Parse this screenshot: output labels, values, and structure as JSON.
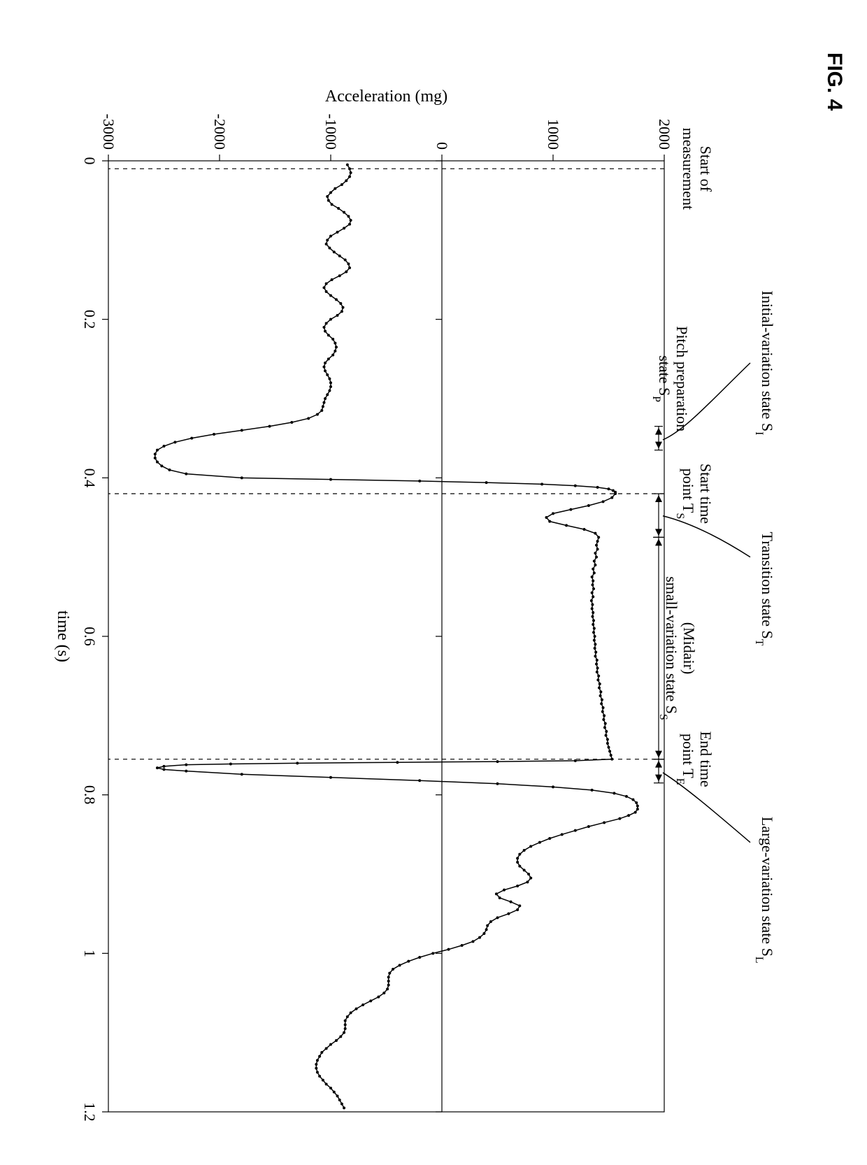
{
  "figure_label": "FIG. 4",
  "chart": {
    "type": "line",
    "background_color": "#ffffff",
    "axis_color": "#000000",
    "grid_color": "#000000",
    "line_color": "#000000",
    "marker_color": "#000000",
    "line_width": 1.5,
    "marker_radius": 2.0,
    "xlim": [
      0,
      1.2
    ],
    "ylim": [
      -3000,
      2000
    ],
    "axis_linewidth": 1.2,
    "zero_line": true,
    "x": {
      "label": "time  (s)",
      "label_fontsize": 24,
      "ticks": [
        0,
        0.2,
        0.4,
        0.6,
        0.8,
        1,
        1.2
      ],
      "tick_labels": [
        "0",
        "0.2",
        "0.4",
        "0.6",
        "0.8",
        "1",
        "1.2"
      ],
      "tick_fontsize": 22
    },
    "y": {
      "label": "Acceleration  (mg)",
      "label_fontsize": 24,
      "ticks": [
        -3000,
        -2000,
        -1000,
        0,
        1000,
        2000
      ],
      "tick_labels": [
        "-3000",
        "-2000",
        "-1000",
        "0",
        "1000",
        "2000"
      ],
      "tick_fontsize": 22
    },
    "markers": {
      "x_dashed": [
        0.01,
        0.42,
        0.755
      ],
      "dash_pattern": "6,6",
      "dash_color": "#000000",
      "dash_width": 1.2
    },
    "annotations": {
      "start_meas": "Start of\nmeasurement",
      "pitch_prep": "Pitch preparation\nstate S",
      "pitch_prep_sub": "P",
      "initial_var": "Initial-variation state S",
      "initial_var_sub": "I",
      "start_time": "Start time\npoint T",
      "start_time_sub": "S",
      "transition": "Transition state S",
      "transition_sub": "T",
      "midair": "(Midair)\nsmall-variation state S",
      "midair_sub": "S",
      "end_time": "End time\npoint T",
      "end_time_sub": "E",
      "large_var": "Large-variation state S",
      "large_var_sub": "L",
      "fontsize": 22
    },
    "data": [
      [
        0.005,
        -850
      ],
      [
        0.01,
        -830
      ],
      [
        0.015,
        -820
      ],
      [
        0.02,
        -830
      ],
      [
        0.025,
        -860
      ],
      [
        0.03,
        -900
      ],
      [
        0.035,
        -960
      ],
      [
        0.04,
        -1000
      ],
      [
        0.045,
        -1030
      ],
      [
        0.05,
        -1020
      ],
      [
        0.055,
        -990
      ],
      [
        0.06,
        -930
      ],
      [
        0.065,
        -880
      ],
      [
        0.07,
        -840
      ],
      [
        0.075,
        -820
      ],
      [
        0.08,
        -830
      ],
      [
        0.085,
        -880
      ],
      [
        0.09,
        -940
      ],
      [
        0.095,
        -1000
      ],
      [
        0.1,
        -1030
      ],
      [
        0.105,
        -1040
      ],
      [
        0.11,
        -1010
      ],
      [
        0.115,
        -970
      ],
      [
        0.12,
        -920
      ],
      [
        0.125,
        -870
      ],
      [
        0.13,
        -840
      ],
      [
        0.135,
        -830
      ],
      [
        0.14,
        -860
      ],
      [
        0.145,
        -920
      ],
      [
        0.15,
        -990
      ],
      [
        0.155,
        -1040
      ],
      [
        0.16,
        -1060
      ],
      [
        0.165,
        -1040
      ],
      [
        0.17,
        -1000
      ],
      [
        0.175,
        -950
      ],
      [
        0.18,
        -910
      ],
      [
        0.185,
        -890
      ],
      [
        0.19,
        -900
      ],
      [
        0.195,
        -940
      ],
      [
        0.2,
        -1000
      ],
      [
        0.205,
        -1040
      ],
      [
        0.21,
        -1060
      ],
      [
        0.215,
        -1050
      ],
      [
        0.22,
        -1020
      ],
      [
        0.225,
        -980
      ],
      [
        0.23,
        -960
      ],
      [
        0.235,
        -950
      ],
      [
        0.24,
        -960
      ],
      [
        0.245,
        -980
      ],
      [
        0.25,
        -1020
      ],
      [
        0.255,
        -1050
      ],
      [
        0.26,
        -1060
      ],
      [
        0.265,
        -1050
      ],
      [
        0.27,
        -1030
      ],
      [
        0.275,
        -1010
      ],
      [
        0.28,
        -1000
      ],
      [
        0.285,
        -1000
      ],
      [
        0.29,
        -1010
      ],
      [
        0.295,
        -1030
      ],
      [
        0.3,
        -1050
      ],
      [
        0.305,
        -1060
      ],
      [
        0.31,
        -1070
      ],
      [
        0.315,
        -1080
      ],
      [
        0.32,
        -1120
      ],
      [
        0.325,
        -1200
      ],
      [
        0.33,
        -1350
      ],
      [
        0.335,
        -1550
      ],
      [
        0.34,
        -1800
      ],
      [
        0.345,
        -2050
      ],
      [
        0.35,
        -2250
      ],
      [
        0.355,
        -2400
      ],
      [
        0.36,
        -2500
      ],
      [
        0.365,
        -2560
      ],
      [
        0.37,
        -2580
      ],
      [
        0.375,
        -2580
      ],
      [
        0.38,
        -2560
      ],
      [
        0.385,
        -2520
      ],
      [
        0.39,
        -2450
      ],
      [
        0.395,
        -2300
      ],
      [
        0.4,
        -1800
      ],
      [
        0.402,
        -1000
      ],
      [
        0.404,
        -200
      ],
      [
        0.406,
        400
      ],
      [
        0.408,
        900
      ],
      [
        0.41,
        1200
      ],
      [
        0.412,
        1400
      ],
      [
        0.414,
        1500
      ],
      [
        0.416,
        1540
      ],
      [
        0.418,
        1560
      ],
      [
        0.42,
        1560
      ],
      [
        0.425,
        1530
      ],
      [
        0.43,
        1450
      ],
      [
        0.435,
        1320
      ],
      [
        0.44,
        1160
      ],
      [
        0.445,
        1000
      ],
      [
        0.45,
        940
      ],
      [
        0.455,
        970
      ],
      [
        0.46,
        1120
      ],
      [
        0.465,
        1280
      ],
      [
        0.47,
        1380
      ],
      [
        0.475,
        1410
      ],
      [
        0.48,
        1400
      ],
      [
        0.485,
        1390
      ],
      [
        0.49,
        1400
      ],
      [
        0.495,
        1380
      ],
      [
        0.5,
        1390
      ],
      [
        0.505,
        1370
      ],
      [
        0.51,
        1380
      ],
      [
        0.515,
        1360
      ],
      [
        0.52,
        1370
      ],
      [
        0.525,
        1350
      ],
      [
        0.53,
        1360
      ],
      [
        0.535,
        1355
      ],
      [
        0.54,
        1365
      ],
      [
        0.545,
        1350
      ],
      [
        0.55,
        1360
      ],
      [
        0.555,
        1345
      ],
      [
        0.56,
        1355
      ],
      [
        0.565,
        1350
      ],
      [
        0.57,
        1360
      ],
      [
        0.575,
        1355
      ],
      [
        0.58,
        1365
      ],
      [
        0.585,
        1360
      ],
      [
        0.59,
        1370
      ],
      [
        0.595,
        1365
      ],
      [
        0.6,
        1375
      ],
      [
        0.605,
        1370
      ],
      [
        0.61,
        1380
      ],
      [
        0.615,
        1375
      ],
      [
        0.62,
        1385
      ],
      [
        0.625,
        1380
      ],
      [
        0.63,
        1395
      ],
      [
        0.635,
        1390
      ],
      [
        0.64,
        1400
      ],
      [
        0.645,
        1395
      ],
      [
        0.65,
        1410
      ],
      [
        0.655,
        1405
      ],
      [
        0.66,
        1420
      ],
      [
        0.665,
        1415
      ],
      [
        0.67,
        1430
      ],
      [
        0.675,
        1425
      ],
      [
        0.68,
        1440
      ],
      [
        0.685,
        1435
      ],
      [
        0.69,
        1450
      ],
      [
        0.695,
        1445
      ],
      [
        0.7,
        1460
      ],
      [
        0.705,
        1455
      ],
      [
        0.71,
        1470
      ],
      [
        0.715,
        1465
      ],
      [
        0.72,
        1480
      ],
      [
        0.725,
        1475
      ],
      [
        0.73,
        1490
      ],
      [
        0.735,
        1490
      ],
      [
        0.74,
        1500
      ],
      [
        0.745,
        1510
      ],
      [
        0.75,
        1520
      ],
      [
        0.755,
        1530
      ],
      [
        0.757,
        1200
      ],
      [
        0.758,
        500
      ],
      [
        0.759,
        -400
      ],
      [
        0.76,
        -1300
      ],
      [
        0.761,
        -1900
      ],
      [
        0.762,
        -2300
      ],
      [
        0.764,
        -2500
      ],
      [
        0.766,
        -2560
      ],
      [
        0.768,
        -2500
      ],
      [
        0.77,
        -2300
      ],
      [
        0.774,
        -1800
      ],
      [
        0.778,
        -1000
      ],
      [
        0.782,
        -200
      ],
      [
        0.786,
        500
      ],
      [
        0.79,
        1000
      ],
      [
        0.794,
        1350
      ],
      [
        0.798,
        1550
      ],
      [
        0.802,
        1660
      ],
      [
        0.806,
        1720
      ],
      [
        0.81,
        1750
      ],
      [
        0.814,
        1760
      ],
      [
        0.818,
        1760
      ],
      [
        0.822,
        1740
      ],
      [
        0.826,
        1680
      ],
      [
        0.83,
        1600
      ],
      [
        0.835,
        1460
      ],
      [
        0.84,
        1320
      ],
      [
        0.845,
        1200
      ],
      [
        0.85,
        1080
      ],
      [
        0.855,
        970
      ],
      [
        0.86,
        880
      ],
      [
        0.865,
        800
      ],
      [
        0.87,
        740
      ],
      [
        0.875,
        700
      ],
      [
        0.88,
        680
      ],
      [
        0.885,
        680
      ],
      [
        0.89,
        700
      ],
      [
        0.895,
        740
      ],
      [
        0.9,
        780
      ],
      [
        0.905,
        800
      ],
      [
        0.91,
        770
      ],
      [
        0.915,
        680
      ],
      [
        0.92,
        560
      ],
      [
        0.925,
        490
      ],
      [
        0.93,
        520
      ],
      [
        0.935,
        620
      ],
      [
        0.94,
        700
      ],
      [
        0.945,
        680
      ],
      [
        0.95,
        600
      ],
      [
        0.955,
        500
      ],
      [
        0.96,
        440
      ],
      [
        0.965,
        410
      ],
      [
        0.97,
        400
      ],
      [
        0.975,
        380
      ],
      [
        0.98,
        340
      ],
      [
        0.985,
        280
      ],
      [
        0.99,
        180
      ],
      [
        0.995,
        60
      ],
      [
        1.0,
        -80
      ],
      [
        1.005,
        -200
      ],
      [
        1.01,
        -300
      ],
      [
        1.015,
        -380
      ],
      [
        1.02,
        -440
      ],
      [
        1.025,
        -470
      ],
      [
        1.03,
        -480
      ],
      [
        1.035,
        -480
      ],
      [
        1.04,
        -480
      ],
      [
        1.045,
        -490
      ],
      [
        1.05,
        -520
      ],
      [
        1.055,
        -570
      ],
      [
        1.06,
        -640
      ],
      [
        1.065,
        -710
      ],
      [
        1.07,
        -770
      ],
      [
        1.075,
        -820
      ],
      [
        1.08,
        -850
      ],
      [
        1.085,
        -870
      ],
      [
        1.09,
        -870
      ],
      [
        1.095,
        -870
      ],
      [
        1.1,
        -880
      ],
      [
        1.105,
        -910
      ],
      [
        1.11,
        -950
      ],
      [
        1.115,
        -1000
      ],
      [
        1.12,
        -1040
      ],
      [
        1.125,
        -1080
      ],
      [
        1.13,
        -1100
      ],
      [
        1.135,
        -1120
      ],
      [
        1.14,
        -1130
      ],
      [
        1.145,
        -1130
      ],
      [
        1.15,
        -1120
      ],
      [
        1.155,
        -1100
      ],
      [
        1.16,
        -1070
      ],
      [
        1.165,
        -1040
      ],
      [
        1.17,
        -1000
      ],
      [
        1.175,
        -970
      ],
      [
        1.18,
        -940
      ],
      [
        1.185,
        -920
      ],
      [
        1.19,
        -900
      ],
      [
        1.195,
        -880
      ]
    ]
  }
}
